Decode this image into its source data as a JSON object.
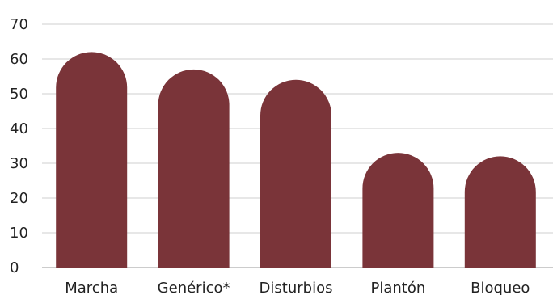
{
  "chart_data": {
    "type": "bar",
    "title": "",
    "xlabel": "",
    "ylabel": "",
    "categories": [
      "Marcha",
      "Genérico*",
      "Disturbios",
      "Plantón",
      "Bloqueo"
    ],
    "values": [
      62,
      57,
      54,
      33,
      32
    ],
    "ylim": [
      0,
      70
    ],
    "yticks": [
      0,
      10,
      20,
      30,
      40,
      50,
      60,
      70
    ],
    "ytick_labels": [
      "0",
      "10",
      "20",
      "30",
      "40",
      "50",
      "60",
      "70"
    ],
    "grid": true,
    "legend": "none",
    "bar_color": "#7a3439"
  }
}
